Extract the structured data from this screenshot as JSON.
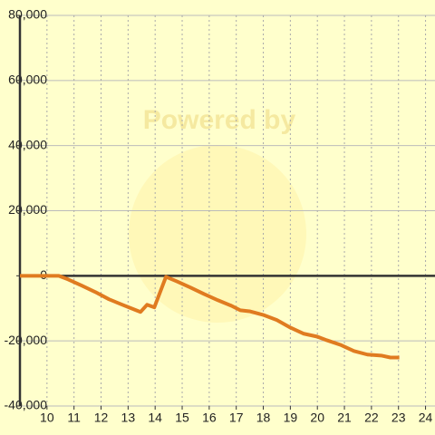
{
  "chart_data": {
    "type": "line",
    "watermark": "Powered by",
    "x": [
      9,
      10.44,
      10.78,
      11.28,
      11.79,
      12.29,
      12.79,
      13.3,
      13.46,
      13.7,
      13.97,
      14.4,
      14.8,
      15.31,
      15.81,
      16.32,
      16.82,
      17.15,
      17.49,
      17.99,
      18.5,
      19.0,
      19.5,
      20.0,
      20.35,
      20.85,
      21.35,
      21.85,
      22.36,
      22.7,
      23.03
    ],
    "series": [
      {
        "color": "#e07b20",
        "values": [
          0,
          0,
          -1100,
          -3000,
          -5000,
          -7200,
          -8900,
          -10600,
          -11100,
          -8900,
          -9700,
          -300,
          -1700,
          -3600,
          -5600,
          -7500,
          -9200,
          -10600,
          -10900,
          -12000,
          -13600,
          -15900,
          -17800,
          -18700,
          -19800,
          -21200,
          -23100,
          -24200,
          -24500,
          -25100,
          -25100
        ]
      }
    ],
    "xlim": [
      9,
      24.35
    ],
    "xticks": [
      10,
      11,
      12,
      13,
      14,
      15,
      16,
      17,
      18,
      19,
      20,
      21,
      22,
      23,
      24
    ],
    "ylim": [
      -40000,
      80000
    ],
    "yticks": [
      {
        "value": -40000,
        "label": "-40,000"
      },
      {
        "value": -20000,
        "label": "-20,000"
      },
      0,
      {
        "value": 20000,
        "label": "20,000"
      },
      {
        "value": 40000,
        "label": "40,000"
      },
      {
        "value": 60000,
        "label": "60,000"
      },
      {
        "value": 80000,
        "label": "80,000"
      }
    ],
    "grid": true
  }
}
